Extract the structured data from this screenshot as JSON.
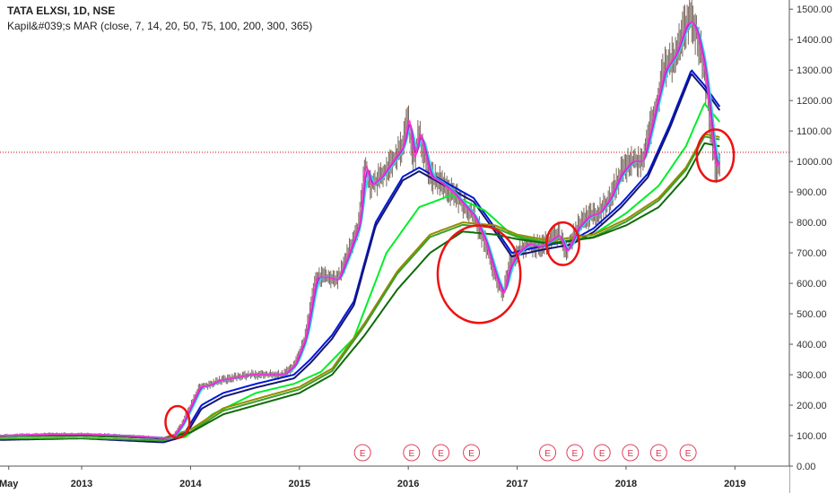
{
  "header": {
    "symbol_line": "TATA ELXSI, 1D, NSE",
    "indicator_line": "Kapil&#039;s MAR (close, 7, 14, 20, 50, 75, 100, 200, 300, 365)"
  },
  "colors": {
    "price": "#7a6a60",
    "ma7": "#ff2fd6",
    "ma14": "#9932cc",
    "ma20": "#2fd9e8",
    "ma50": "#0018d6",
    "ma75": "#151570",
    "ma100": "#00ee2a",
    "ma200": "#998a00",
    "ma300": "#3aa02a",
    "ma365": "#0f6a0a",
    "hline": "#cc0000",
    "annotation": "#ee1111",
    "earnings": "#e0405a"
  },
  "chart_data": {
    "type": "line",
    "title": "TATA ELXSI, 1D, NSE",
    "xlabel": "",
    "ylabel": "",
    "x_tick_labels": [
      "May",
      "2013",
      "2014",
      "2015",
      "2016",
      "2017",
      "2018",
      "2019"
    ],
    "x_tick_positions_year": [
      2012.33,
      2013.0,
      2014.0,
      2015.0,
      2016.0,
      2017.0,
      2018.0,
      2019.0
    ],
    "xlim": [
      2012.25,
      2019.5
    ],
    "y_tick_labels": [
      "0.00",
      "100.00",
      "200.00",
      "300.00",
      "400.00",
      "500.00",
      "600.00",
      "700.00",
      "800.00",
      "900.00",
      "1000.00",
      "1100.00",
      "1200.00",
      "1300.00",
      "1400.00",
      "1500.00"
    ],
    "ylim": [
      0,
      1530
    ],
    "grid": false,
    "horizontal_line_value": 1030,
    "price_series": {
      "x": [
        2012.25,
        2012.5,
        2012.75,
        2013.0,
        2013.25,
        2013.5,
        2013.75,
        2013.83,
        2013.92,
        2014.0,
        2014.08,
        2014.17,
        2014.25,
        2014.4,
        2014.55,
        2014.7,
        2014.85,
        2014.95,
        2015.05,
        2015.15,
        2015.25,
        2015.35,
        2015.45,
        2015.55,
        2015.6,
        2015.65,
        2015.75,
        2015.85,
        2015.95,
        2016.0,
        2016.05,
        2016.1,
        2016.2,
        2016.3,
        2016.4,
        2016.5,
        2016.6,
        2016.7,
        2016.8,
        2016.87,
        2016.92,
        2017.0,
        2017.1,
        2017.2,
        2017.3,
        2017.38,
        2017.45,
        2017.55,
        2017.65,
        2017.75,
        2017.85,
        2017.95,
        2018.05,
        2018.15,
        2018.25,
        2018.35,
        2018.45,
        2018.55,
        2018.6,
        2018.65,
        2018.72,
        2018.78,
        2018.82,
        2018.86
      ],
      "y": [
        100,
        103,
        105,
        105,
        102,
        98,
        92,
        95,
        140,
        200,
        260,
        265,
        280,
        290,
        300,
        300,
        300,
        330,
        420,
        620,
        620,
        610,
        700,
        800,
        1000,
        920,
        950,
        1000,
        1050,
        1150,
        1000,
        1100,
        950,
        930,
        900,
        860,
        820,
        740,
        620,
        560,
        650,
        700,
        730,
        720,
        740,
        760,
        700,
        780,
        820,
        830,
        880,
        960,
        1000,
        1000,
        1150,
        1300,
        1350,
        1450,
        1460,
        1420,
        1300,
        1100,
        980,
        1000
      ]
    },
    "series": [
      {
        "key": "ma50",
        "x": [
          2012.25,
          2013.0,
          2013.75,
          2013.95,
          2014.1,
          2014.3,
          2014.6,
          2014.95,
          2015.1,
          2015.3,
          2015.5,
          2015.7,
          2015.95,
          2016.1,
          2016.4,
          2016.6,
          2016.8,
          2016.95,
          2017.2,
          2017.5,
          2017.7,
          2017.95,
          2018.2,
          2018.4,
          2018.6,
          2018.72,
          2018.86
        ],
        "y": [
          98,
          103,
          90,
          110,
          200,
          240,
          270,
          300,
          350,
          430,
          540,
          800,
          950,
          980,
          920,
          880,
          780,
          700,
          720,
          740,
          780,
          860,
          960,
          1120,
          1300,
          1250,
          1180
        ]
      },
      {
        "key": "ma100",
        "x": [
          2012.25,
          2013.0,
          2013.75,
          2013.95,
          2014.2,
          2014.6,
          2014.95,
          2015.2,
          2015.5,
          2015.8,
          2016.1,
          2016.4,
          2016.7,
          2016.95,
          2017.3,
          2017.7,
          2018.0,
          2018.3,
          2018.55,
          2018.72,
          2018.86
        ],
        "y": [
          98,
          102,
          92,
          95,
          170,
          240,
          270,
          310,
          420,
          700,
          850,
          890,
          840,
          760,
          740,
          760,
          830,
          920,
          1050,
          1190,
          1130
        ]
      },
      {
        "key": "ma200",
        "x": [
          2012.25,
          2013.0,
          2013.75,
          2014.0,
          2014.3,
          2014.7,
          2015.0,
          2015.3,
          2015.6,
          2015.9,
          2016.2,
          2016.5,
          2016.8,
          2017.0,
          2017.3,
          2017.7,
          2018.0,
          2018.3,
          2018.55,
          2018.72,
          2018.86
        ],
        "y": [
          98,
          100,
          92,
          120,
          190,
          230,
          260,
          320,
          470,
          640,
          760,
          800,
          790,
          760,
          740,
          760,
          810,
          880,
          980,
          1090,
          1080
        ]
      },
      {
        "key": "ma365",
        "x": [
          2012.25,
          2013.0,
          2013.75,
          2014.0,
          2014.3,
          2014.7,
          2015.0,
          2015.3,
          2015.6,
          2015.9,
          2016.2,
          2016.5,
          2016.8,
          2017.0,
          2017.3,
          2017.7,
          2018.0,
          2018.3,
          2018.55,
          2018.72,
          2018.86
        ],
        "y": [
          98,
          100,
          92,
          110,
          170,
          210,
          240,
          300,
          430,
          580,
          700,
          770,
          760,
          745,
          730,
          750,
          790,
          850,
          950,
          1060,
          1050
        ]
      }
    ],
    "earnings_markers": {
      "label": "E",
      "x": [
        2015.58,
        2016.03,
        2016.3,
        2016.58,
        2017.28,
        2017.53,
        2017.78,
        2018.04,
        2018.3,
        2018.57
      ]
    },
    "annotations": [
      {
        "shape": "ellipse",
        "cx_year": 2013.88,
        "cy_value": 145,
        "rx_year": 0.11,
        "ry_value": 52
      },
      {
        "shape": "ellipse",
        "cx_year": 2016.65,
        "cy_value": 630,
        "rx_year": 0.38,
        "ry_value": 160
      },
      {
        "shape": "ellipse",
        "cx_year": 2017.42,
        "cy_value": 730,
        "rx_year": 0.15,
        "ry_value": 70
      },
      {
        "shape": "ellipse",
        "cx_year": 2018.82,
        "cy_value": 1020,
        "rx_year": 0.17,
        "ry_value": 85
      }
    ]
  }
}
